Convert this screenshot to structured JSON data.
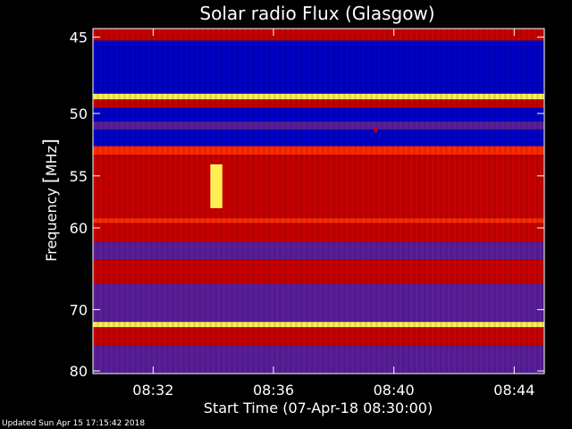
{
  "chart_data": {
    "type": "heatmap",
    "title": "Solar radio Flux (Glasgow)",
    "xlabel": "Start Time (07-Apr-18 08:30:00)",
    "ylabel_text": "Frequency ",
    "ylabel_unit": "MHz",
    "x_tick_labels": [
      "08:32",
      "08:36",
      "08:40",
      "08:44"
    ],
    "x_tick_minutes": [
      2,
      6,
      10,
      14
    ],
    "xlim_minutes": [
      0,
      15
    ],
    "y_ticks": [
      45,
      50,
      55,
      60,
      70,
      80
    ],
    "y_scale": "reciprocal",
    "ylim": [
      44.5,
      80.5
    ],
    "grid": false,
    "background_color": "#000000",
    "axis_color": "#ffffff",
    "colors": {
      "low": "#0000c8",
      "mid_low": "#5a1e9a",
      "mid": "#c80000",
      "high": "#ff2a00",
      "peak": "#ffee55"
    },
    "bands": [
      {
        "from": 44.5,
        "to": 45.2,
        "level": "mid"
      },
      {
        "from": 45.2,
        "to": 48.6,
        "level": "low"
      },
      {
        "from": 48.6,
        "to": 49.0,
        "level": "peak"
      },
      {
        "from": 49.0,
        "to": 49.6,
        "level": "mid"
      },
      {
        "from": 49.6,
        "to": 50.6,
        "level": "low"
      },
      {
        "from": 50.6,
        "to": 51.2,
        "level": "mid_low"
      },
      {
        "from": 51.2,
        "to": 52.5,
        "level": "low"
      },
      {
        "from": 52.5,
        "to": 53.2,
        "level": "high"
      },
      {
        "from": 53.2,
        "to": 59.0,
        "level": "mid"
      },
      {
        "from": 59.0,
        "to": 59.5,
        "level": "high"
      },
      {
        "from": 59.5,
        "to": 61.5,
        "level": "mid"
      },
      {
        "from": 61.5,
        "to": 63.5,
        "level": "mid_low"
      },
      {
        "from": 63.5,
        "to": 66.5,
        "level": "mid"
      },
      {
        "from": 66.5,
        "to": 71.8,
        "level": "mid_low"
      },
      {
        "from": 71.8,
        "to": 72.6,
        "level": "peak"
      },
      {
        "from": 72.6,
        "to": 75.5,
        "level": "mid"
      },
      {
        "from": 75.5,
        "to": 80.5,
        "level": "mid_low"
      }
    ],
    "bursts": [
      {
        "minute_from": 3.9,
        "minute_to": 4.3,
        "freq_from": 54.0,
        "freq_to": 58.0,
        "level": "peak"
      },
      {
        "minute_from": 9.35,
        "minute_to": 9.45,
        "freq_from": 51.0,
        "freq_to": 51.4,
        "level": "mid"
      }
    ]
  },
  "footer": {
    "updated_text": "Updated Sun Apr 15 17:15:42 2018"
  }
}
